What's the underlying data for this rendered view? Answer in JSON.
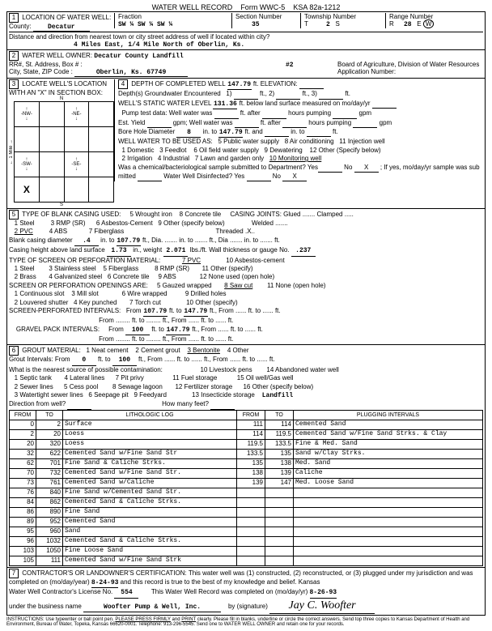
{
  "header": {
    "title": "WATER WELL RECORD",
    "form": "Form WWC-5",
    "ksa": "KSA 82a-1212"
  },
  "s1": {
    "county": "Decatur",
    "fraction": "SW ¼  SW ¼  SW ¼",
    "section": "35",
    "township": "2",
    "range": "28",
    "range_dir": "W",
    "distance": "4 Miles East, 1/4 Mile North of Oberlin, Ks."
  },
  "s2": {
    "owner": "Decatur County Landfill",
    "city": "Oberlin, Ks. 67749",
    "app": "#2"
  },
  "s4": {
    "depth_completed": "147.79",
    "elev": "",
    "gw_enc": "1",
    "static": "131.36",
    "borehole_diam": "8",
    "borehole_to": "147.79"
  },
  "s5": {
    "blank_diam": ".4",
    "blank_to": "107.79",
    "casing_height": "1.73",
    "casing_wt": "2.071",
    "gauge": ".237",
    "screen_from": "107.79",
    "screen_to": "147.79",
    "gravel_from": "100",
    "gravel_to": "147.79"
  },
  "s6": {
    "grout_from": "0",
    "grout_to": "100",
    "nearest": "Landfill"
  },
  "lith": [
    {
      "f": "0",
      "t": "2",
      "d": "Surface"
    },
    {
      "f": "2",
      "t": "20",
      "d": "Loess"
    },
    {
      "f": "20",
      "t": "320",
      "d": "Loess"
    },
    {
      "f": "32",
      "t": "622",
      "d": "Cemented Sand w/Fine Sand Str"
    },
    {
      "f": "62",
      "t": "701",
      "d": "Fine Sand & Caliche Strks."
    },
    {
      "f": "70",
      "t": "732",
      "d": "Cemented Sand w/Fine Sand Str."
    },
    {
      "f": "73",
      "t": "761",
      "d": "Cemented Sand w/Caliche"
    },
    {
      "f": "76",
      "t": "840",
      "d": "Fine Sand w/Cemented Sand Str."
    },
    {
      "f": "84",
      "t": "862",
      "d": "Cemented Sand & Caliche Strks."
    },
    {
      "f": "86",
      "t": "890",
      "d": "Fine Sand"
    },
    {
      "f": "89",
      "t": "952",
      "d": "Cemented Sand"
    },
    {
      "f": "95",
      "t": "960",
      "d": "Sand"
    },
    {
      "f": "96",
      "t": "1032",
      "d": "Cemented Sand & Caliche Strks."
    },
    {
      "f": "103",
      "t": "1050",
      "d": "Fine Loose Sand"
    },
    {
      "f": "105",
      "t": "111",
      "d": "Cemented Sand w/Fine Sand Strk"
    }
  ],
  "plug": [
    {
      "f": "111",
      "t": "114",
      "d": "Cemented Sand"
    },
    {
      "f": "114",
      "t": "119.5",
      "d": "Cemented Sand w/Fine Sand Strks. & Clay"
    },
    {
      "f": "119.5",
      "t": "133.5",
      "d": "Fine & Med. Sand"
    },
    {
      "f": "133.5",
      "t": "135",
      "d": "Sand w/Clay Strks."
    },
    {
      "f": "135",
      "t": "138",
      "d": "Med. Sand"
    },
    {
      "f": "138",
      "t": "139",
      "d": "Caliche"
    },
    {
      "f": "139",
      "t": "147",
      "d": "Med. Loose Sand"
    }
  ],
  "s7": {
    "date1": "8-24-93",
    "lic": "554",
    "business": "Woofter Pump & Well, Inc.",
    "date2": "8-26-93",
    "sig": "Jay C. Woofter"
  }
}
